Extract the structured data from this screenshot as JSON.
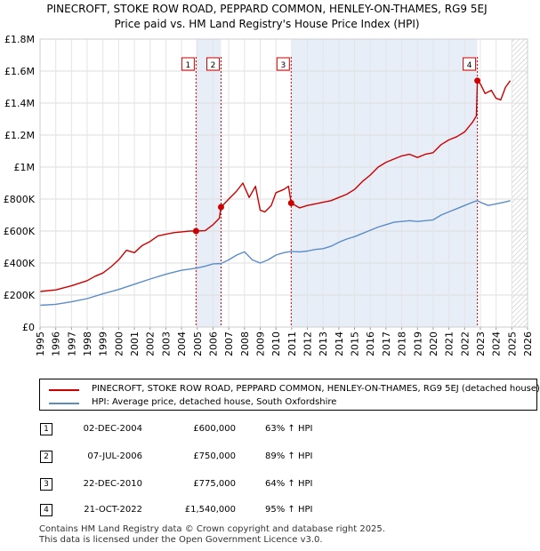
{
  "title_line1": "PINECROFT, STOKE ROW ROAD, PEPPARD COMMON, HENLEY-ON-THAMES, RG9 5EJ",
  "title_line2": "Price paid vs. HM Land Registry's House Price Index (HPI)",
  "chart_data": {
    "type": "line",
    "x_range": [
      1995,
      2026
    ],
    "ylim": [
      0,
      1800000
    ],
    "y_ticks": [
      0,
      200000,
      400000,
      600000,
      800000,
      1000000,
      1200000,
      1400000,
      1600000,
      1800000
    ],
    "y_tick_labels": [
      "£0",
      "£200K",
      "£400K",
      "£600K",
      "£800K",
      "£1M",
      "£1.2M",
      "£1.4M",
      "£1.6M",
      "£1.8M"
    ],
    "x_ticks": [
      1995,
      1996,
      1997,
      1998,
      1999,
      2000,
      2001,
      2002,
      2003,
      2004,
      2005,
      2006,
      2007,
      2008,
      2009,
      2010,
      2011,
      2012,
      2013,
      2014,
      2015,
      2016,
      2017,
      2018,
      2019,
      2020,
      2021,
      2022,
      2023,
      2024,
      2025,
      2026
    ],
    "series": [
      {
        "name": "PINECROFT, STOKE ROW ROAD, PEPPARD COMMON, HENLEY-ON-THAMES, RG9 5EJ (detached house)",
        "color": "#cc0000",
        "x": [
          1995.0,
          1996.0,
          1997.0,
          1998.0,
          1998.5,
          1999.0,
          1999.5,
          2000.0,
          2000.5,
          2001.0,
          2001.5,
          2002.0,
          2002.5,
          2003.0,
          2003.5,
          2004.0,
          2004.5,
          2004.92,
          2005.5,
          2006.0,
          2006.4,
          2006.51,
          2007.0,
          2007.5,
          2007.9,
          2008.3,
          2008.7,
          2009.0,
          2009.3,
          2009.7,
          2010.0,
          2010.5,
          2010.8,
          2010.97,
          2011.5,
          2012.0,
          2012.5,
          2013.0,
          2013.5,
          2014.0,
          2014.5,
          2015.0,
          2015.5,
          2016.0,
          2016.5,
          2017.0,
          2017.5,
          2018.0,
          2018.5,
          2019.0,
          2019.5,
          2020.0,
          2020.5,
          2021.0,
          2021.5,
          2022.0,
          2022.5,
          2022.75,
          2022.81,
          2023.0,
          2023.3,
          2023.7,
          2024.0,
          2024.3,
          2024.6,
          2024.9
        ],
        "values": [
          222000,
          232000,
          258000,
          290000,
          318000,
          338000,
          375000,
          420000,
          480000,
          465000,
          510000,
          535000,
          570000,
          580000,
          590000,
          595000,
          600000,
          600000,
          602000,
          640000,
          680000,
          750000,
          800000,
          850000,
          900000,
          810000,
          880000,
          730000,
          720000,
          760000,
          840000,
          860000,
          880000,
          775000,
          745000,
          760000,
          770000,
          780000,
          790000,
          810000,
          830000,
          860000,
          910000,
          950000,
          1000000,
          1030000,
          1050000,
          1070000,
          1080000,
          1060000,
          1080000,
          1090000,
          1140000,
          1170000,
          1190000,
          1220000,
          1280000,
          1320000,
          1540000,
          1520000,
          1460000,
          1480000,
          1430000,
          1420000,
          1500000,
          1540000
        ]
      },
      {
        "name": "HPI: Average price, detached house, South Oxfordshire",
        "color": "#5b8cc8",
        "x": [
          1995.0,
          1996.0,
          1997.0,
          1998.0,
          1999.0,
          2000.0,
          2001.0,
          2002.0,
          2003.0,
          2004.0,
          2004.92,
          2005.5,
          2006.0,
          2006.51,
          2007.0,
          2007.5,
          2008.0,
          2008.5,
          2009.0,
          2009.5,
          2010.0,
          2010.5,
          2010.97,
          2011.5,
          2012.0,
          2012.5,
          2013.0,
          2013.5,
          2014.0,
          2014.5,
          2015.0,
          2015.5,
          2016.0,
          2016.5,
          2017.0,
          2017.5,
          2018.0,
          2018.5,
          2019.0,
          2019.5,
          2020.0,
          2020.5,
          2021.0,
          2021.5,
          2022.0,
          2022.5,
          2022.81,
          2023.0,
          2023.5,
          2024.0,
          2024.5,
          2024.9
        ],
        "values": [
          136000,
          142000,
          158000,
          178000,
          208000,
          235000,
          268000,
          300000,
          330000,
          355000,
          368000,
          380000,
          395000,
          397000,
          420000,
          450000,
          470000,
          420000,
          400000,
          420000,
          450000,
          465000,
          473000,
          470000,
          475000,
          485000,
          490000,
          505000,
          530000,
          550000,
          565000,
          585000,
          605000,
          625000,
          640000,
          655000,
          660000,
          665000,
          660000,
          665000,
          670000,
          700000,
          720000,
          740000,
          760000,
          780000,
          790000,
          780000,
          760000,
          770000,
          780000,
          790000
        ]
      }
    ],
    "sale_points": [
      {
        "label": "1",
        "x": 2004.92,
        "value": 600000
      },
      {
        "label": "2",
        "x": 2006.51,
        "value": 750000
      },
      {
        "label": "3",
        "x": 2010.97,
        "value": 775000
      },
      {
        "label": "4",
        "x": 2022.81,
        "value": 1540000
      }
    ],
    "shaded_ranges": [
      [
        2004.92,
        2006.51
      ],
      [
        2010.97,
        2022.81
      ]
    ],
    "hatched_range": [
      2025.0,
      2026.0
    ]
  },
  "legend": [
    {
      "label": "PINECROFT, STOKE ROW ROAD, PEPPARD COMMON, HENLEY-ON-THAMES, RG9 5EJ (detached house)",
      "color": "#cc0000"
    },
    {
      "label": "HPI: Average price, detached house, South Oxfordshire",
      "color": "#5b8cc8"
    }
  ],
  "transactions": [
    {
      "num": "1",
      "date": "02-DEC-2004",
      "price": "£600,000",
      "hpi": "63% ↑ HPI"
    },
    {
      "num": "2",
      "date": "07-JUL-2006",
      "price": "£750,000",
      "hpi": "89% ↑ HPI"
    },
    {
      "num": "3",
      "date": "22-DEC-2010",
      "price": "£775,000",
      "hpi": "64% ↑ HPI"
    },
    {
      "num": "4",
      "date": "21-OCT-2022",
      "price": "£1,540,000",
      "hpi": "95% ↑ HPI"
    }
  ],
  "footer_line1": "Contains HM Land Registry data © Crown copyright and database right 2025.",
  "footer_line2": "This data is licensed under the Open Government Licence v3.0."
}
